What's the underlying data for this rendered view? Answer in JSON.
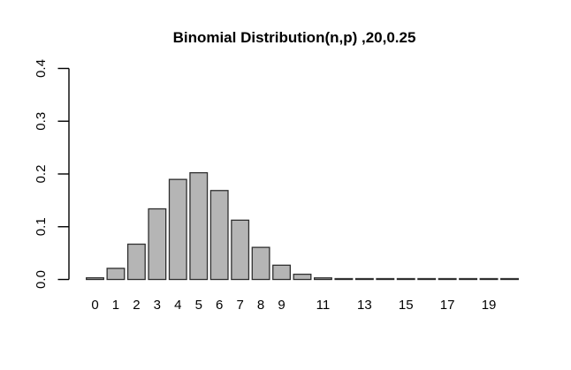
{
  "title": "Binomial Distribution(n,p) ,20,0.25",
  "colors": {
    "background": "#ffffff",
    "bar_fill": "#b5b5b5",
    "bar_border": "#2f2f2f",
    "axis": "#000000",
    "text": "#000000"
  },
  "chart_data": {
    "type": "bar",
    "title": "Binomial Distribution(n,p) ,20,0.25",
    "categories": [
      "0",
      "1",
      "2",
      "3",
      "4",
      "5",
      "6",
      "7",
      "8",
      "9",
      "10",
      "11",
      "12",
      "13",
      "14",
      "15",
      "16",
      "17",
      "18",
      "19",
      "20"
    ],
    "values": [
      0.003171,
      0.021141,
      0.066948,
      0.133895,
      0.189686,
      0.202332,
      0.16861,
      0.112406,
      0.060887,
      0.027061,
      0.009923,
      0.003007,
      0.000752,
      0.000154,
      2.6e-05,
      3e-06,
      0,
      0,
      0,
      0,
      0
    ],
    "xlabel": "",
    "ylabel": "",
    "ylim": [
      0,
      0.4
    ],
    "y_ticks": [
      0.0,
      0.1,
      0.2,
      0.3,
      0.4
    ],
    "y_tick_labels": [
      "0.0",
      "0.1",
      "0.2",
      "0.3",
      "0.4"
    ],
    "x_tick_labels_shown": [
      "0",
      "1",
      "2",
      "3",
      "4",
      "5",
      "6",
      "7",
      "8",
      "9",
      "11",
      "13",
      "15",
      "17",
      "19"
    ],
    "grid": false,
    "legend": null,
    "distribution": {
      "n": 20,
      "p": 0.25
    }
  }
}
